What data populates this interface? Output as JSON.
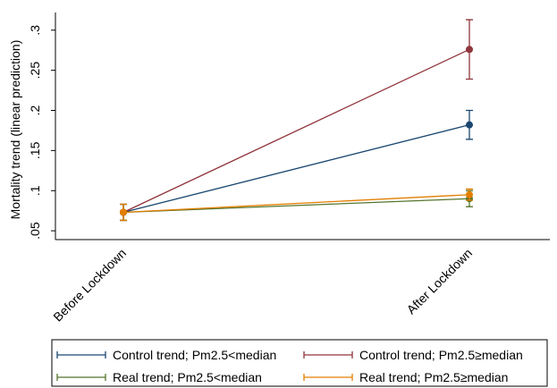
{
  "chart_data": {
    "type": "line",
    "y_label": "Mortality trend (linear prediction)",
    "categories": [
      "Before Lockdown",
      "After Lockdown"
    ],
    "series": [
      {
        "name": "Control trend; Pm2.5<median",
        "color": "#1a476f",
        "values": [
          0.073,
          0.182
        ],
        "errors": [
          0.01,
          0.018
        ]
      },
      {
        "name": "Control trend; Pm2.5≥median",
        "color": "#90353b",
        "values": [
          0.073,
          0.276
        ],
        "errors": [
          0.01,
          0.037
        ]
      },
      {
        "name": "Real trend; Pm2.5<median",
        "color": "#55752f",
        "values": [
          0.073,
          0.09
        ],
        "errors": [
          0.01,
          0.01
        ]
      },
      {
        "name": "Real trend; Pm2.5≥median",
        "color": "#e37e00",
        "values": [
          0.073,
          0.095
        ],
        "errors": [
          0.01,
          0.007
        ]
      }
    ],
    "ylim": [
      0.039,
      0.322
    ],
    "yticks": [
      {
        "value": 0.05,
        "label": ".05"
      },
      {
        "value": 0.1,
        "label": ".1"
      },
      {
        "value": 0.15,
        "label": ".15"
      },
      {
        "value": 0.2,
        "label": ".2"
      },
      {
        "value": 0.25,
        "label": ".25"
      },
      {
        "value": 0.3,
        "label": ".3"
      }
    ],
    "grid": false
  }
}
